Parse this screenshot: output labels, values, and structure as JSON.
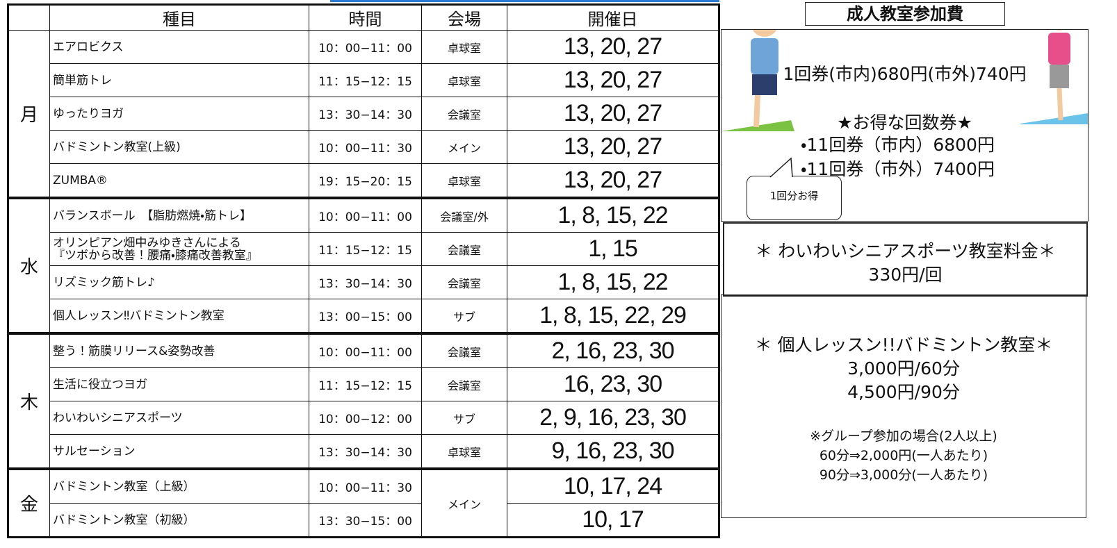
{
  "table": {
    "header": [
      "種目",
      "時間",
      "会場",
      "開催日"
    ],
    "groups": [
      {
        "day": "月",
        "rows": [
          {
            "event": "エアロビクス",
            "time": "10：00−11：00",
            "venue": "卓球室",
            "dates": "13, 20, 27"
          },
          {
            "event": "簡単筋トレ",
            "time": "11：15−12：15",
            "venue": "卓球室",
            "dates": "13, 20, 27"
          },
          {
            "event": "ゆったりヨガ",
            "time": "13：30−14：30",
            "venue": "会議室",
            "dates": "13, 20, 27"
          },
          {
            "event": "バドミントン教室(上級)",
            "time": "10：00−11：30",
            "venue": "メイン",
            "dates": "13, 20, 27"
          },
          {
            "event": "ZUMBA®",
            "time": "19：15−20：15",
            "venue": "卓球室",
            "dates": "13, 20, 27"
          }
        ]
      },
      {
        "day": "水",
        "rows": [
          {
            "event": "バランスボール　【脂肪燃焼・筋トレ】",
            "time": "10：00−11：00",
            "venue": "会議室/外",
            "dates": "1, 8, 15, 22"
          },
          {
            "event": "オリンピアン畑中みゆきさんによる\n『ツボから改善！腰痛・膝痛改善教室』",
            "time": "11：15−12：15",
            "venue": "会議室",
            "dates": "1, 15"
          },
          {
            "event": "リズミック筋トレ♪",
            "time": "13：30−14：30",
            "venue": "会議室",
            "dates": "1, 8, 15, 22"
          },
          {
            "event": "個人レッスン‼バドミントン教室",
            "time": "13：00−15：00",
            "venue": "サブ",
            "dates": "1, 8, 15, 22, 29"
          }
        ]
      },
      {
        "day": "木",
        "rows": [
          {
            "event": "整う！筋膜リリース&姿勢改善",
            "time": "10：00−11：00",
            "venue": "会議室",
            "dates": "2, 16, 23, 30"
          },
          {
            "event": "生活に役立つヨガ",
            "time": "11：15−12：15",
            "venue": "会議室",
            "dates": "16, 23, 30"
          },
          {
            "event": "わいわいシニアスポーツ",
            "time": "10：00−12：00",
            "venue": "サブ",
            "dates": "2, 9, 16, 23, 30"
          },
          {
            "event": "サルセーション",
            "time": "13：30−14：30",
            "venue": "卓球室",
            "dates": "9, 16, 23, 30"
          }
        ]
      },
      {
        "day": "金",
        "rows": [
          {
            "event": "バドミントン教室（上級）",
            "time": "10：00−11：30",
            "venue": "メイン",
            "dates": "10, 17, 24"
          },
          {
            "event": "バドミントン教室（初級）",
            "time": "13：30−15：00",
            "dates": "10, 17"
          }
        ]
      }
    ]
  },
  "fees": {
    "title": "成人教室参加費",
    "single": "1回券(市内)680円(市外)740円",
    "bundle_title": "★お得な回数券★",
    "bundle_lines": [
      "・11回券（市内）6800円",
      "・11回券（市外）7400円"
    ],
    "callout": "1回分お得",
    "senior": {
      "title": "＊ わいわいシニアスポーツ教室料金＊",
      "price": "330円/回"
    },
    "lesson": {
      "title": "＊ 個人レッスン!!バドミントン教室＊",
      "prices": [
        "3,000円/60分",
        "4,500円/90分"
      ],
      "group_note": "※グループ参加の場合(2人以上)",
      "group_prices": [
        "60分⇒2,000円(一人あたり)",
        "90分⇒3,000分(一人あたり)"
      ]
    }
  }
}
